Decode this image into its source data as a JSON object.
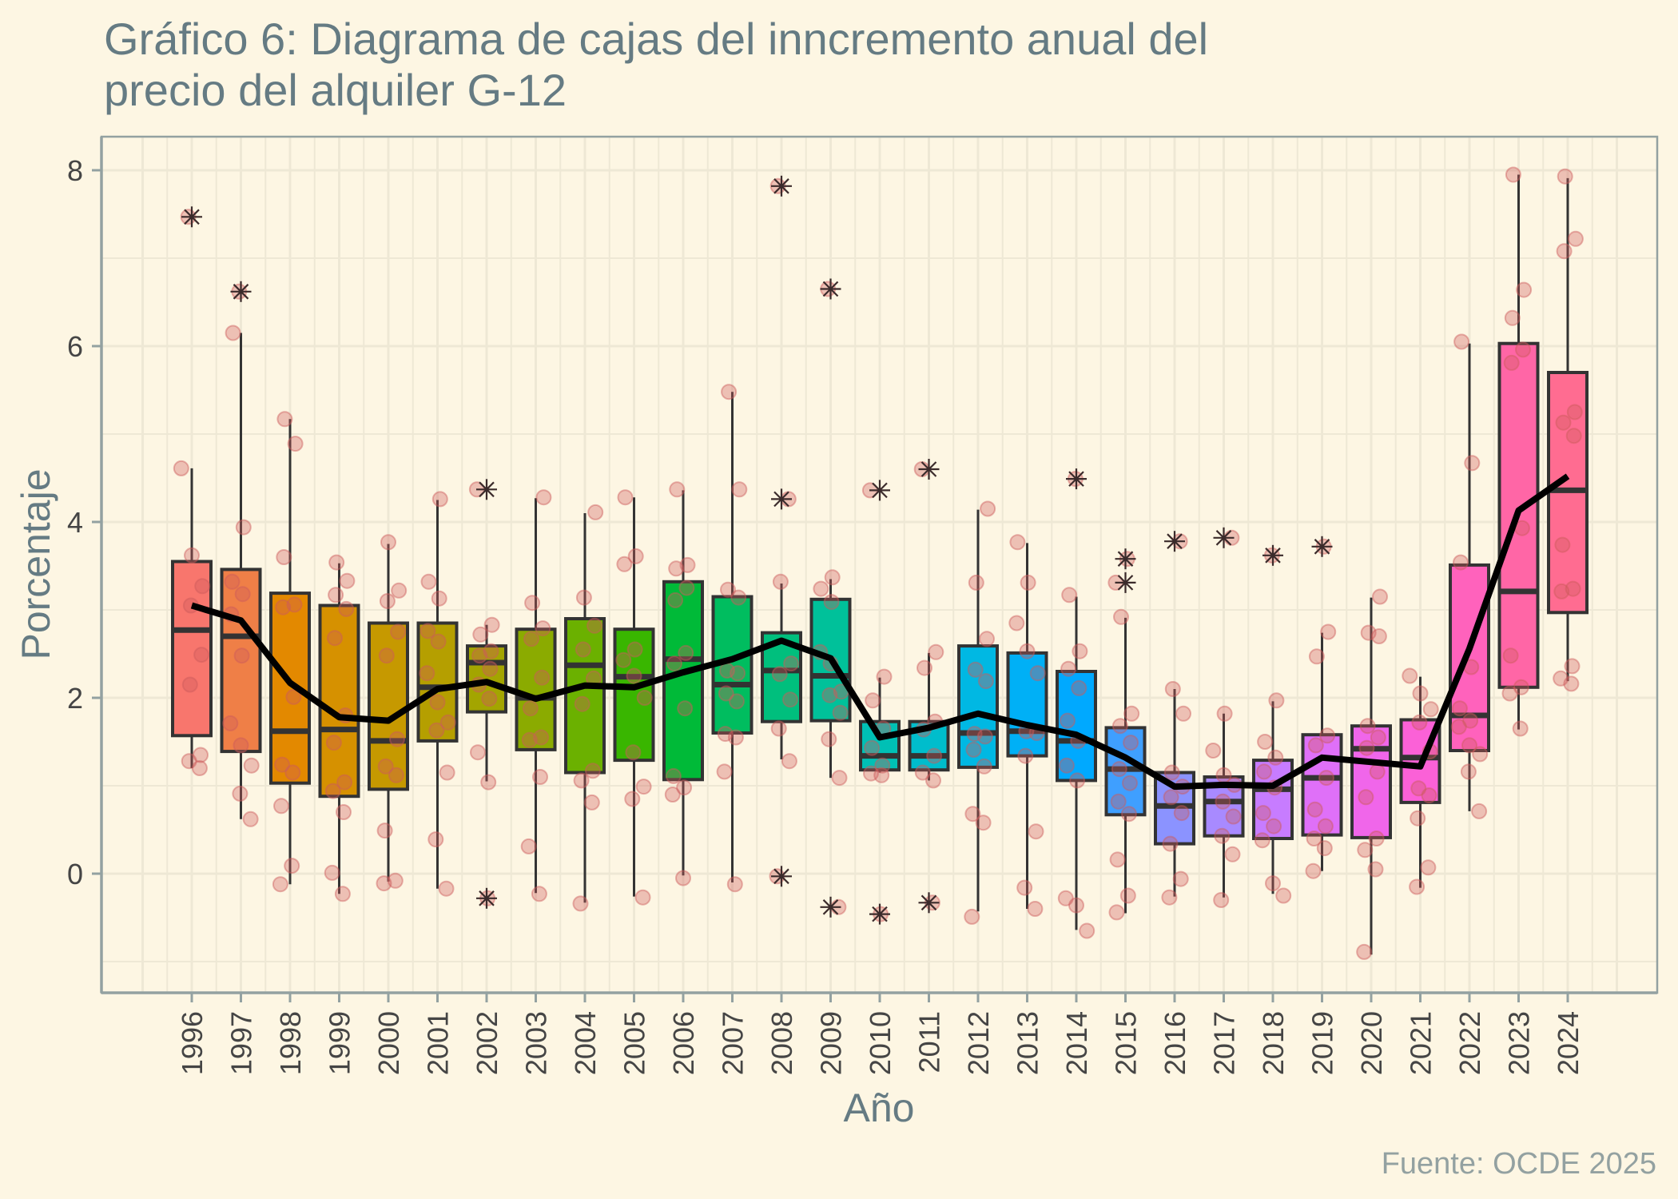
{
  "page": {
    "background": "#fdf6e3",
    "grid_color": "#eee8d5",
    "axis_color": "#93a1a1",
    "title_color": "#657b83",
    "caption_color": "#93a1a1",
    "point_color": "#cd5c5c",
    "outlier_color": "#3b2b2b",
    "box_line_color": "#333333"
  },
  "chart_data": {
    "type": "boxplot",
    "title_lines": [
      "Gráfico 6: Diagrama de cajas del inncremento anual del",
      "precio del alquiler G-12"
    ],
    "xlabel": "Año",
    "ylabel": "Porcentaje",
    "caption": "Fuente: OCDE 2025",
    "ylim": [
      -1.35,
      8.38
    ],
    "yticks": [
      0,
      2,
      4,
      6,
      8
    ],
    "ytick_labels": [
      "0",
      "2",
      "4",
      "6",
      "8"
    ],
    "grid": true,
    "legend": "none",
    "mean_line": {
      "color": "#000000"
    },
    "categories": [
      "1996",
      "1997",
      "1998",
      "1999",
      "2000",
      "2001",
      "2002",
      "2003",
      "2004",
      "2005",
      "2006",
      "2007",
      "2008",
      "2009",
      "2010",
      "2011",
      "2012",
      "2013",
      "2014",
      "2015",
      "2016",
      "2017",
      "2018",
      "2019",
      "2020",
      "2021",
      "2022",
      "2023",
      "2024"
    ],
    "colors": [
      "#F8766D",
      "#EF7F47",
      "#E38900",
      "#D69100",
      "#C69900",
      "#B59F00",
      "#A3A500",
      "#8BAB00",
      "#6BB100",
      "#39B600",
      "#00BA38",
      "#00BD5F",
      "#00BF7D",
      "#00C19A",
      "#00C0B5",
      "#00BDCC",
      "#00B8E3",
      "#00B0F6",
      "#00A9FF",
      "#3F9FFF",
      "#8B93FF",
      "#A88AFF",
      "#C77CFF",
      "#DF70F8",
      "#F066EA",
      "#FB61D7",
      "#FF62BC",
      "#FF66A6",
      "#FF6C91"
    ],
    "series": [
      {
        "year": "1996",
        "lower": 1.2,
        "q1": 1.57,
        "median": 2.77,
        "q3": 3.55,
        "upper": 4.61,
        "outliers": [
          7.47
        ],
        "mean": 3.05,
        "points": [
          4.61,
          3.62,
          3.27,
          3.05,
          2.49,
          2.15,
          1.35,
          1.28,
          1.2
        ]
      },
      {
        "year": "1997",
        "lower": 0.62,
        "q1": 1.39,
        "median": 2.7,
        "q3": 3.46,
        "upper": 6.15,
        "outliers": [
          6.62
        ],
        "mean": 2.88,
        "points": [
          6.15,
          3.94,
          3.32,
          3.18,
          2.95,
          2.48,
          1.71,
          1.46,
          1.23,
          0.91,
          0.62
        ]
      },
      {
        "year": "1998",
        "lower": -0.12,
        "q1": 1.03,
        "median": 1.62,
        "q3": 3.19,
        "upper": 5.17,
        "outliers": [],
        "mean": 2.17,
        "points": [
          5.17,
          4.89,
          3.6,
          3.06,
          3.03,
          2.01,
          1.24,
          1.15,
          0.77,
          0.09,
          -0.12
        ]
      },
      {
        "year": "1999",
        "lower": -0.23,
        "q1": 0.88,
        "median": 1.64,
        "q3": 3.05,
        "upper": 3.53,
        "outliers": [],
        "mean": 1.78,
        "points": [
          3.54,
          3.33,
          3.17,
          3.01,
          2.68,
          1.8,
          1.49,
          1.04,
          0.94,
          0.7,
          0.01,
          -0.23
        ]
      },
      {
        "year": "2000",
        "lower": -0.09,
        "q1": 0.96,
        "median": 1.51,
        "q3": 2.85,
        "upper": 3.75,
        "outliers": [],
        "mean": 1.74,
        "points": [
          3.77,
          3.22,
          3.1,
          2.75,
          2.48,
          1.53,
          1.22,
          1.12,
          0.49,
          -0.08,
          -0.11
        ]
      },
      {
        "year": "2001",
        "lower": -0.17,
        "q1": 1.51,
        "median": 2.12,
        "q3": 2.85,
        "upper": 4.25,
        "outliers": [],
        "mean": 2.1,
        "points": [
          4.26,
          3.32,
          3.13,
          2.76,
          2.64,
          2.28,
          1.95,
          1.72,
          1.63,
          1.15,
          0.39,
          -0.17
        ]
      },
      {
        "year": "2002",
        "lower": 1.05,
        "q1": 1.84,
        "median": 2.4,
        "q3": 2.59,
        "upper": 2.83,
        "outliers": [
          4.37,
          -0.28
        ],
        "mean": 2.18,
        "points": [
          2.83,
          2.72,
          2.53,
          2.48,
          2.33,
          2.15,
          1.99,
          1.38,
          1.04
        ]
      },
      {
        "year": "2003",
        "lower": -0.22,
        "q1": 1.41,
        "median": 2.0,
        "q3": 2.78,
        "upper": 4.27,
        "outliers": [],
        "mean": 1.99,
        "points": [
          4.28,
          3.08,
          2.79,
          2.67,
          2.23,
          1.88,
          1.55,
          1.52,
          1.1,
          0.31,
          -0.23
        ]
      },
      {
        "year": "2004",
        "lower": -0.33,
        "q1": 1.15,
        "median": 2.37,
        "q3": 2.9,
        "upper": 4.1,
        "outliers": [],
        "mean": 2.14,
        "points": [
          4.11,
          3.14,
          2.82,
          2.55,
          2.22,
          1.93,
          1.17,
          1.06,
          0.81,
          -0.34
        ]
      },
      {
        "year": "2005",
        "lower": -0.26,
        "q1": 1.29,
        "median": 2.24,
        "q3": 2.78,
        "upper": 4.28,
        "outliers": [],
        "mean": 2.12,
        "points": [
          4.28,
          3.61,
          3.52,
          2.55,
          2.43,
          2.25,
          2.0,
          1.38,
          0.99,
          0.85,
          -0.27
        ]
      },
      {
        "year": "2006",
        "lower": -0.02,
        "q1": 1.07,
        "median": 2.44,
        "q3": 3.32,
        "upper": 4.36,
        "outliers": [],
        "mean": 2.29,
        "points": [
          4.37,
          3.51,
          3.47,
          3.25,
          3.11,
          2.51,
          2.39,
          1.88,
          1.11,
          0.98,
          0.9,
          -0.05
        ]
      },
      {
        "year": "2007",
        "lower": -0.1,
        "q1": 1.6,
        "median": 2.15,
        "q3": 3.15,
        "upper": 5.48,
        "outliers": [],
        "mean": 2.44,
        "points": [
          5.48,
          4.37,
          3.23,
          3.14,
          2.31,
          2.28,
          2.05,
          1.96,
          1.59,
          1.55,
          1.16,
          -0.12
        ]
      },
      {
        "year": "2008",
        "lower": 1.3,
        "q1": 1.73,
        "median": 2.31,
        "q3": 2.74,
        "upper": 3.3,
        "outliers": [
          7.82,
          4.26,
          -0.03
        ],
        "mean": 2.65,
        "points": [
          3.32,
          2.39,
          2.27,
          1.98,
          1.65,
          1.28
        ]
      },
      {
        "year": "2009",
        "lower": 1.09,
        "q1": 1.74,
        "median": 2.25,
        "q3": 3.12,
        "upper": 3.35,
        "outliers": [
          6.65,
          -0.38
        ],
        "mean": 2.45,
        "points": [
          3.37,
          3.24,
          3.09,
          2.52,
          2.39,
          2.07,
          2.03,
          1.83,
          1.53,
          1.09
        ]
      },
      {
        "year": "2010",
        "lower": 1.15,
        "q1": 1.18,
        "median": 1.34,
        "q3": 1.73,
        "upper": 2.23,
        "outliers": [
          4.36,
          -0.46
        ],
        "mean": 1.55,
        "points": [
          2.24,
          1.97,
          1.65,
          1.43,
          1.23,
          1.14,
          1.12
        ]
      },
      {
        "year": "2011",
        "lower": 1.06,
        "q1": 1.18,
        "median": 1.34,
        "q3": 1.73,
        "upper": 2.51,
        "outliers": [
          4.6,
          -0.33
        ],
        "mean": 1.66,
        "points": [
          2.52,
          2.34,
          1.73,
          1.64,
          1.34,
          1.15,
          1.06
        ]
      },
      {
        "year": "2012",
        "lower": -0.43,
        "q1": 1.21,
        "median": 1.6,
        "q3": 2.59,
        "upper": 4.14,
        "outliers": [],
        "mean": 1.82,
        "points": [
          4.15,
          3.31,
          2.67,
          2.32,
          2.19,
          1.59,
          1.56,
          1.41,
          1.22,
          0.68,
          0.58,
          -0.49
        ]
      },
      {
        "year": "2013",
        "lower": -0.4,
        "q1": 1.34,
        "median": 1.62,
        "q3": 2.51,
        "upper": 3.76,
        "outliers": [],
        "mean": 1.69,
        "points": [
          3.77,
          3.31,
          2.85,
          2.53,
          2.28,
          1.62,
          1.6,
          1.34,
          0.48,
          -0.16,
          -0.4
        ]
      },
      {
        "year": "2014",
        "lower": -0.64,
        "q1": 1.06,
        "median": 1.51,
        "q3": 2.3,
        "upper": 3.15,
        "outliers": [
          4.49
        ],
        "mean": 1.58,
        "points": [
          3.17,
          2.53,
          2.33,
          2.11,
          1.74,
          1.51,
          1.23,
          1.06,
          -0.28,
          -0.36,
          -0.65
        ]
      },
      {
        "year": "2015",
        "lower": -0.45,
        "q1": 0.67,
        "median": 1.19,
        "q3": 1.66,
        "upper": 2.91,
        "outliers": [
          3.58,
          3.31
        ],
        "mean": 1.32,
        "points": [
          2.92,
          1.82,
          1.68,
          1.49,
          1.19,
          1.03,
          0.82,
          0.68,
          0.16,
          -0.25,
          -0.44
        ]
      },
      {
        "year": "2016",
        "lower": -0.26,
        "q1": 0.34,
        "median": 0.77,
        "q3": 1.15,
        "upper": 2.1,
        "outliers": [
          3.78
        ],
        "mean": 0.99,
        "points": [
          2.1,
          1.82,
          1.15,
          0.99,
          0.87,
          0.69,
          0.34,
          -0.06,
          -0.27
        ]
      },
      {
        "year": "2017",
        "lower": -0.27,
        "q1": 0.43,
        "median": 0.82,
        "q3": 1.1,
        "upper": 1.82,
        "outliers": [
          3.82
        ],
        "mean": 1.01,
        "points": [
          1.82,
          1.4,
          1.12,
          1.01,
          0.82,
          0.65,
          0.43,
          0.22,
          -0.3
        ]
      },
      {
        "year": "2018",
        "lower": -0.23,
        "q1": 0.4,
        "median": 0.96,
        "q3": 1.29,
        "upper": 1.96,
        "outliers": [
          3.62
        ],
        "mean": 1.0,
        "points": [
          1.97,
          1.5,
          1.32,
          1.16,
          0.98,
          0.69,
          0.54,
          0.38,
          -0.11,
          -0.25
        ]
      },
      {
        "year": "2019",
        "lower": 0.03,
        "q1": 0.44,
        "median": 1.09,
        "q3": 1.58,
        "upper": 2.74,
        "outliers": [
          3.72
        ],
        "mean": 1.32,
        "points": [
          2.75,
          2.47,
          1.57,
          1.46,
          1.09,
          0.73,
          0.54,
          0.4,
          0.29,
          0.03
        ]
      },
      {
        "year": "2020",
        "lower": -0.92,
        "q1": 0.41,
        "median": 1.42,
        "q3": 1.68,
        "upper": 3.14,
        "outliers": [],
        "mean": 1.27,
        "points": [
          3.15,
          2.74,
          2.7,
          1.68,
          1.55,
          1.43,
          1.16,
          0.87,
          0.4,
          0.27,
          0.05,
          -0.89
        ]
      },
      {
        "year": "2021",
        "lower": -0.16,
        "q1": 0.81,
        "median": 1.32,
        "q3": 1.75,
        "upper": 2.24,
        "outliers": [],
        "mean": 1.22,
        "points": [
          2.25,
          2.05,
          1.87,
          1.72,
          1.39,
          0.97,
          0.89,
          0.63,
          0.07,
          -0.15
        ]
      },
      {
        "year": "2022",
        "lower": 0.71,
        "q1": 1.4,
        "median": 1.8,
        "q3": 3.51,
        "upper": 6.03,
        "outliers": [],
        "mean": 2.56,
        "points": [
          6.05,
          4.67,
          3.54,
          2.35,
          1.88,
          1.74,
          1.67,
          1.46,
          1.36,
          1.16,
          0.71
        ]
      },
      {
        "year": "2023",
        "lower": 1.64,
        "q1": 2.12,
        "median": 3.21,
        "q3": 6.03,
        "upper": 7.95,
        "outliers": [],
        "mean": 4.13,
        "points": [
          7.95,
          6.64,
          6.32,
          5.96,
          5.81,
          3.93,
          2.48,
          2.12,
          2.05,
          1.65
        ]
      },
      {
        "year": "2024",
        "lower": 2.19,
        "q1": 2.97,
        "median": 4.36,
        "q3": 5.7,
        "upper": 7.91,
        "outliers": [],
        "mean": 4.52,
        "points": [
          7.93,
          7.22,
          7.08,
          5.25,
          5.13,
          4.98,
          3.74,
          3.24,
          3.21,
          2.36,
          2.22,
          2.16
        ]
      }
    ]
  }
}
